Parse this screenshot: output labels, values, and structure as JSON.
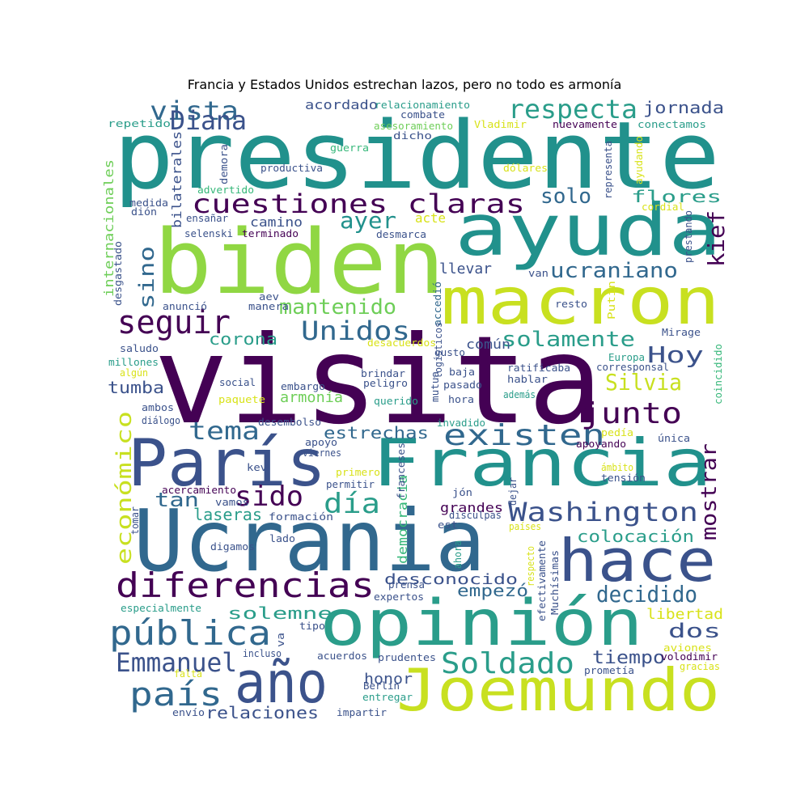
{
  "title": "Francia y Estados Unidos estrechan lazos, pero no todo es armonía",
  "palette": {
    "purple": "#440154",
    "indigo": "#3b528b",
    "blue": "#31688e",
    "teal": "#21918c",
    "sea": "#2a9d8a",
    "green": "#35b779",
    "lime": "#6ece58",
    "leaf": "#90d743",
    "yellow": "#c8e020",
    "gold": "#d8e219"
  },
  "words": [
    {
      "text": "presidente",
      "color": "teal"
    },
    {
      "text": "visita",
      "color": "purple"
    },
    {
      "text": "biden",
      "color": "leaf"
    },
    {
      "text": "ayuda",
      "color": "teal"
    },
    {
      "text": "macron",
      "color": "yellow"
    },
    {
      "text": "Ucrania",
      "color": "blue"
    },
    {
      "text": "París",
      "color": "indigo"
    },
    {
      "text": "Francia",
      "color": "teal"
    },
    {
      "text": "opinión",
      "color": "sea"
    },
    {
      "text": "hace",
      "color": "indigo"
    },
    {
      "text": "Joemundo",
      "color": "yellow"
    },
    {
      "text": "año",
      "color": "indigo"
    },
    {
      "text": "diferencias",
      "color": "purple"
    },
    {
      "text": "pública",
      "color": "blue"
    },
    {
      "text": "país",
      "color": "blue"
    },
    {
      "text": "Emmanuel",
      "color": "indigo"
    },
    {
      "text": "Soldado",
      "color": "sea"
    },
    {
      "text": "Washington",
      "color": "indigo"
    },
    {
      "text": "existen",
      "color": "blue"
    },
    {
      "text": "cuestiones claras",
      "color": "purple"
    },
    {
      "text": "respecta",
      "color": "sea"
    },
    {
      "text": "vista",
      "color": "blue"
    },
    {
      "text": "Diana",
      "color": "indigo"
    },
    {
      "text": "seguir",
      "color": "purple"
    },
    {
      "text": "Unidos",
      "color": "blue"
    },
    {
      "text": "mantenido",
      "color": "lime"
    },
    {
      "text": "solamente",
      "color": "sea"
    },
    {
      "text": "Hoy",
      "color": "indigo"
    },
    {
      "text": "Silvia",
      "color": "yellow"
    },
    {
      "text": "junto",
      "color": "purple"
    },
    {
      "text": "tema",
      "color": "blue"
    },
    {
      "text": "sido",
      "color": "purple"
    },
    {
      "text": "día",
      "color": "sea"
    },
    {
      "text": "económico",
      "color": "yellow"
    },
    {
      "text": "mostrar",
      "color": "purple"
    },
    {
      "text": "decidido",
      "color": "blue"
    },
    {
      "text": "ayer",
      "color": "teal"
    },
    {
      "text": "solo",
      "color": "blue"
    },
    {
      "text": "ucraniano",
      "color": "blue"
    },
    {
      "text": "kief",
      "color": "purple"
    },
    {
      "text": "flores",
      "color": "sea"
    },
    {
      "text": "jornada",
      "color": "indigo"
    },
    {
      "text": "sino",
      "color": "blue"
    },
    {
      "text": "corona",
      "color": "sea"
    },
    {
      "text": "estrechas",
      "color": "blue"
    },
    {
      "text": "empezó",
      "color": "blue"
    },
    {
      "text": "colocación",
      "color": "sea"
    },
    {
      "text": "solemne",
      "color": "sea"
    },
    {
      "text": "dos",
      "color": "indigo"
    },
    {
      "text": "tiempo",
      "color": "indigo"
    },
    {
      "text": "relaciones",
      "color": "indigo"
    },
    {
      "text": "libertad",
      "color": "gold"
    },
    {
      "text": "tan",
      "color": "blue"
    },
    {
      "text": "laseras",
      "color": "sea"
    },
    {
      "text": "grandes",
      "color": "purple"
    },
    {
      "text": "desconocido",
      "color": "indigo"
    },
    {
      "text": "honor",
      "color": "indigo"
    },
    {
      "text": "acordado",
      "color": "indigo"
    },
    {
      "text": "tumba",
      "color": "indigo"
    },
    {
      "text": "armonía",
      "color": "lime"
    },
    {
      "text": "llevar",
      "color": "indigo"
    },
    {
      "text": "común",
      "color": "indigo"
    },
    {
      "text": "camino",
      "color": "indigo"
    },
    {
      "text": "acte",
      "color": "gold"
    },
    {
      "text": "democracia",
      "color": "green"
    },
    {
      "text": "internacionales",
      "color": "lime"
    },
    {
      "text": "bilaterales",
      "color": "indigo"
    },
    {
      "text": "relacionamiento",
      "color": "sea"
    },
    {
      "text": "repetido",
      "color": "sea"
    },
    {
      "text": "combate",
      "color": "indigo"
    },
    {
      "text": "asesoramiento",
      "color": "lime"
    },
    {
      "text": "dicho",
      "color": "indigo"
    },
    {
      "text": "Vladimir",
      "color": "gold"
    },
    {
      "text": "nuevamente",
      "color": "purple"
    },
    {
      "text": "conectamos",
      "color": "sea"
    },
    {
      "text": "guerra",
      "color": "green"
    },
    {
      "text": "productiva",
      "color": "indigo"
    },
    {
      "text": "dólares",
      "color": "gold"
    },
    {
      "text": "advertido",
      "color": "green"
    },
    {
      "text": "demora",
      "color": "indigo"
    },
    {
      "text": "representa",
      "color": "indigo"
    },
    {
      "text": "ayudando",
      "color": "gold"
    },
    {
      "text": "medida",
      "color": "indigo"
    },
    {
      "text": "dión",
      "color": "indigo"
    },
    {
      "text": "ensañar",
      "color": "indigo"
    },
    {
      "text": "selenski",
      "color": "indigo"
    },
    {
      "text": "terminado",
      "color": "purple"
    },
    {
      "text": "desmarca",
      "color": "indigo"
    },
    {
      "text": "cordial",
      "color": "gold"
    },
    {
      "text": "prestando",
      "color": "indigo"
    },
    {
      "text": "desgastado",
      "color": "indigo"
    },
    {
      "text": "van",
      "color": "indigo"
    },
    {
      "text": "aev",
      "color": "indigo"
    },
    {
      "text": "manera",
      "color": "indigo"
    },
    {
      "text": "anunció",
      "color": "indigo"
    },
    {
      "text": "accedió",
      "color": "blue"
    },
    {
      "text": "resto",
      "color": "indigo"
    },
    {
      "text": "Putin",
      "color": "gold"
    },
    {
      "text": "Mirage",
      "color": "indigo"
    },
    {
      "text": "saludo",
      "color": "indigo"
    },
    {
      "text": "millones",
      "color": "sea"
    },
    {
      "text": "algún",
      "color": "gold"
    },
    {
      "text": "logísticos",
      "color": "indigo"
    },
    {
      "text": "desacuerdos",
      "color": "gold"
    },
    {
      "text": "gusto",
      "color": "indigo"
    },
    {
      "text": "Europa",
      "color": "sea"
    },
    {
      "text": "corresponsal",
      "color": "indigo"
    },
    {
      "text": "coincidido",
      "color": "green"
    },
    {
      "text": "ratificaba",
      "color": "indigo"
    },
    {
      "text": "hablar",
      "color": "indigo"
    },
    {
      "text": "baja",
      "color": "indigo"
    },
    {
      "text": "pasado",
      "color": "indigo"
    },
    {
      "text": "hora",
      "color": "indigo"
    },
    {
      "text": "además",
      "color": "sea"
    },
    {
      "text": "mutua",
      "color": "indigo"
    },
    {
      "text": "brindar",
      "color": "indigo"
    },
    {
      "text": "peligro",
      "color": "indigo"
    },
    {
      "text": "querido",
      "color": "sea"
    },
    {
      "text": "social",
      "color": "indigo"
    },
    {
      "text": "embargo",
      "color": "indigo"
    },
    {
      "text": "paquete",
      "color": "gold"
    },
    {
      "text": "ambos",
      "color": "indigo"
    },
    {
      "text": "diálogo",
      "color": "indigo"
    },
    {
      "text": "desembolso",
      "color": "indigo"
    },
    {
      "text": "apoyo",
      "color": "indigo"
    },
    {
      "text": "viernes",
      "color": "indigo"
    },
    {
      "text": "invadido",
      "color": "sea"
    },
    {
      "text": "pedía",
      "color": "gold"
    },
    {
      "text": "apoyando",
      "color": "purple"
    },
    {
      "text": "única",
      "color": "indigo"
    },
    {
      "text": "ámbito",
      "color": "gold"
    },
    {
      "text": "tensión",
      "color": "indigo"
    },
    {
      "text": "kev",
      "color": "indigo"
    },
    {
      "text": "primero",
      "color": "gold"
    },
    {
      "text": "permitir",
      "color": "indigo"
    },
    {
      "text": "franceses",
      "color": "indigo"
    },
    {
      "text": "jón",
      "color": "indigo"
    },
    {
      "text": "dejar",
      "color": "indigo"
    },
    {
      "text": "acercamiento",
      "color": "purple"
    },
    {
      "text": "vamos",
      "color": "indigo"
    },
    {
      "text": "formación",
      "color": "indigo"
    },
    {
      "text": "disculpas",
      "color": "indigo"
    },
    {
      "text": "est",
      "color": "indigo"
    },
    {
      "text": "países",
      "color": "gold"
    },
    {
      "text": "tomar",
      "color": "indigo"
    },
    {
      "text": "lado",
      "color": "indigo"
    },
    {
      "text": "digamos",
      "color": "indigo"
    },
    {
      "text": "ahora",
      "color": "sea"
    },
    {
      "text": "respecto",
      "color": "gold"
    },
    {
      "text": "efectivamente",
      "color": "indigo"
    },
    {
      "text": "Muchísimas",
      "color": "indigo"
    },
    {
      "text": "prensa",
      "color": "indigo"
    },
    {
      "text": "expertos",
      "color": "indigo"
    },
    {
      "text": "especialmente",
      "color": "sea"
    },
    {
      "text": "tipo",
      "color": "indigo"
    },
    {
      "text": "va",
      "color": "indigo"
    },
    {
      "text": "incluso",
      "color": "indigo"
    },
    {
      "text": "acuerdos",
      "color": "indigo"
    },
    {
      "text": "prudentes",
      "color": "indigo"
    },
    {
      "text": "aviones",
      "color": "gold"
    },
    {
      "text": "volodimir",
      "color": "purple"
    },
    {
      "text": "falta",
      "color": "gold"
    },
    {
      "text": "Berlín",
      "color": "indigo"
    },
    {
      "text": "entregar",
      "color": "sea"
    },
    {
      "text": "prometía",
      "color": "indigo"
    },
    {
      "text": "gracias",
      "color": "gold"
    },
    {
      "text": "envío",
      "color": "indigo"
    },
    {
      "text": "impartir",
      "color": "indigo"
    }
  ]
}
